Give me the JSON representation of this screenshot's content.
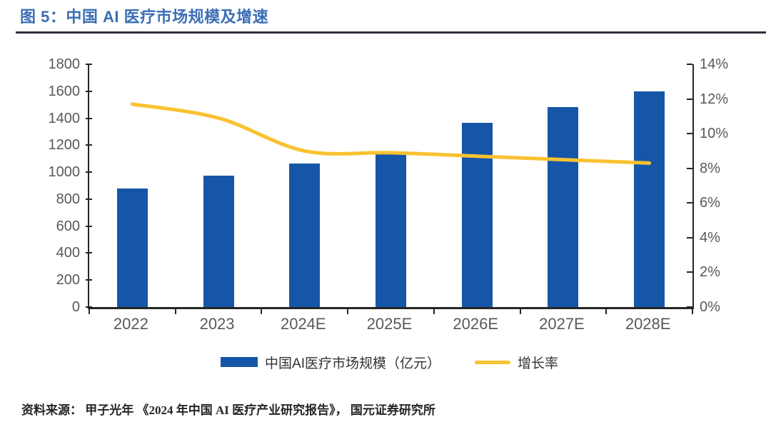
{
  "figure": {
    "title": "图 5：中国 AI 医疗市场规模及增速",
    "source": "资料来源： 甲子光年 《2024 年中国 AI 医疗产业研究报告》， 国元证券研究所"
  },
  "chart_data": {
    "type": "bar",
    "combo": "bar+line",
    "title": "中国 AI 医疗市场规模及增速",
    "categories": [
      "2022",
      "2023",
      "2024E",
      "2025E",
      "2026E",
      "2027E",
      "2028E"
    ],
    "series": [
      {
        "name": "中国AI医疗市场规模（亿元）",
        "type": "bar",
        "axis": "left",
        "color": "#1556A8",
        "values": [
          880,
          975,
          1065,
          1155,
          1365,
          1480,
          1600
        ]
      },
      {
        "name": "增长率",
        "type": "line",
        "axis": "right",
        "color": "#FAC231",
        "values": [
          11.7,
          10.9,
          9.0,
          8.9,
          8.7,
          8.5,
          8.3
        ]
      }
    ],
    "left_axis": {
      "min": 0,
      "max": 1800,
      "step": 200,
      "ticks": [
        "0",
        "200",
        "400",
        "600",
        "800",
        "1000",
        "1200",
        "1400",
        "1600",
        "1800"
      ]
    },
    "right_axis": {
      "min": 0,
      "max": 14,
      "step": 2,
      "ticks": [
        "0%",
        "2%",
        "4%",
        "6%",
        "8%",
        "10%",
        "12%",
        "14%"
      ]
    },
    "legend": {
      "position": "bottom"
    },
    "grid": false
  }
}
